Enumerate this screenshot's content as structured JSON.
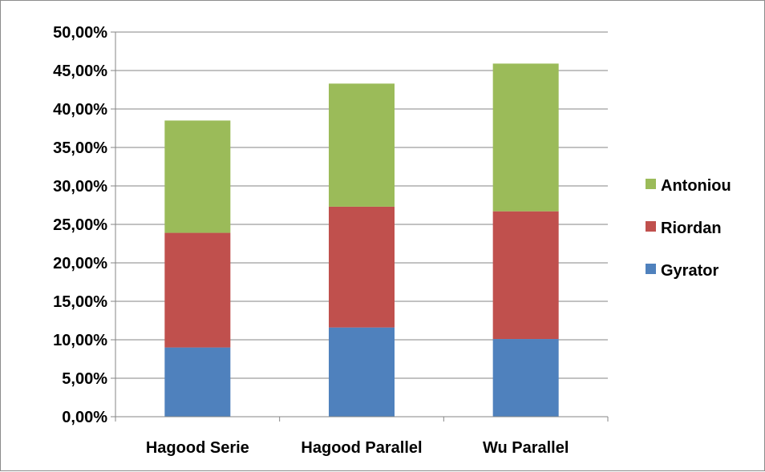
{
  "chart_data": {
    "type": "bar",
    "stacked": true,
    "categories": [
      "Hagood Serie",
      "Hagood Parallel",
      "Wu Parallel"
    ],
    "series": [
      {
        "name": "Gyrator",
        "values": [
          9.0,
          11.6,
          10.1
        ],
        "color": "#4f81bd"
      },
      {
        "name": "Riordan",
        "values": [
          14.9,
          15.7,
          16.6
        ],
        "color": "#c0504d"
      },
      {
        "name": "Antoniou",
        "values": [
          14.6,
          16.0,
          19.2
        ],
        "color": "#9bbb59"
      }
    ],
    "ylim": [
      0,
      50
    ],
    "yticks": [
      "0,00%",
      "5,00%",
      "10,00%",
      "15,00%",
      "20,00%",
      "25,00%",
      "30,00%",
      "35,00%",
      "40,00%",
      "45,00%",
      "50,00%"
    ],
    "grid": true,
    "legend_position": "right",
    "legend_order": [
      "Antoniou",
      "Riordan",
      "Gyrator"
    ],
    "gridline_color": "#868686",
    "axis_color": "#868686"
  }
}
